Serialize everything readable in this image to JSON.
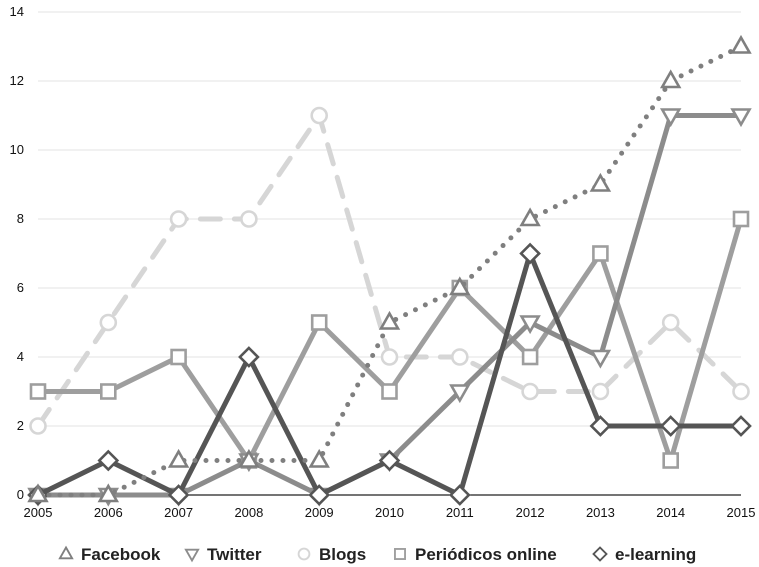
{
  "chart_data": {
    "type": "line",
    "title": "",
    "xlabel": "",
    "ylabel": "",
    "x": [
      2005,
      2006,
      2007,
      2008,
      2009,
      2010,
      2011,
      2012,
      2013,
      2014,
      2015
    ],
    "x_tick_labels": [
      "2005",
      "2006",
      "2007",
      "2008",
      "2009",
      "2010",
      "2011",
      "2012",
      "2013",
      "2014",
      "2015"
    ],
    "ylim": [
      0,
      14
    ],
    "y_ticks": [
      0,
      2,
      4,
      6,
      8,
      10,
      12,
      14
    ],
    "y_tick_labels": [
      "0",
      "2",
      "4",
      "6",
      "8",
      "10",
      "12",
      "14"
    ],
    "grid": true,
    "legend_position": "bottom",
    "series": [
      {
        "name": "Facebook",
        "marker": "triangle-up",
        "line_style": "dotted",
        "color": "#7f7f7f",
        "values": [
          0,
          0,
          1,
          1,
          1,
          5,
          6,
          8,
          9,
          12,
          13
        ]
      },
      {
        "name": "Twitter",
        "marker": "triangle-down",
        "line_style": "solid",
        "color": "#8c8c8c",
        "values": [
          0,
          0,
          0,
          1,
          0,
          1,
          3,
          5,
          4,
          11,
          11
        ]
      },
      {
        "name": "Blogs",
        "marker": "circle",
        "line_style": "dashed",
        "color": "#d6d6d6",
        "values": [
          2,
          5,
          8,
          8,
          11,
          4,
          4,
          3,
          3,
          5,
          3
        ]
      },
      {
        "name": "Periódicos online",
        "marker": "square",
        "line_style": "solid",
        "color": "#9e9e9e",
        "values": [
          3,
          3,
          4,
          1,
          5,
          3,
          6,
          4,
          7,
          1,
          8
        ]
      },
      {
        "name": "e-learning",
        "marker": "diamond",
        "line_style": "solid",
        "color": "#555555",
        "values": [
          0,
          1,
          0,
          4,
          0,
          1,
          0,
          7,
          2,
          2,
          2
        ]
      }
    ]
  }
}
